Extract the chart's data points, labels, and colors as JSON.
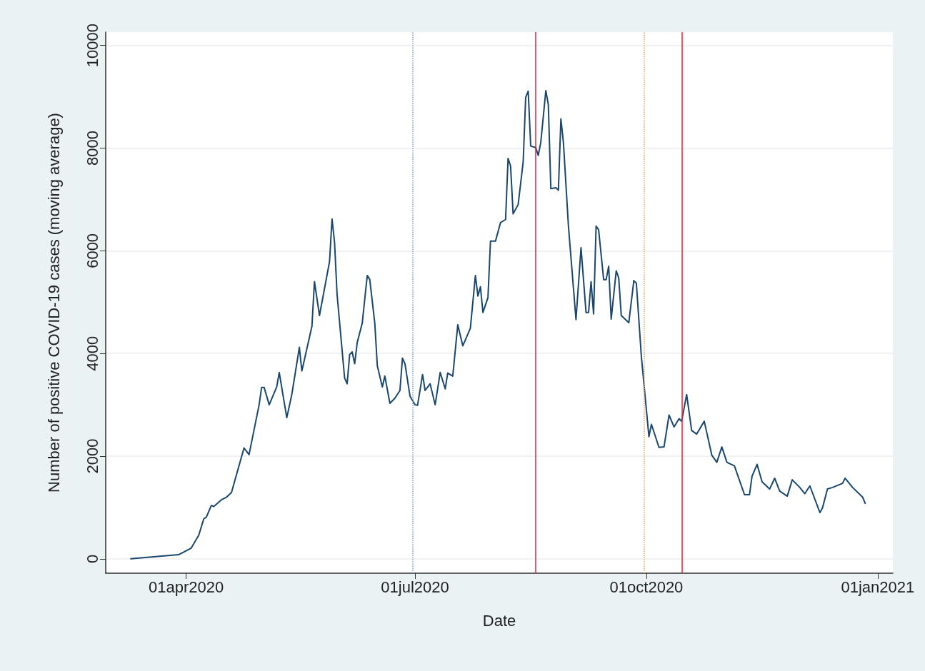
{
  "chart_data": {
    "type": "line",
    "xlabel": "Date",
    "ylabel": "Number of positive COVID-19 cases (moving average)",
    "x": [
      "2020-03-10",
      "2020-03-29",
      "2020-04-03",
      "2020-04-06",
      "2020-04-08",
      "2020-04-09",
      "2020-04-11",
      "2020-04-12",
      "2020-04-15",
      "2020-04-17",
      "2020-04-19",
      "2020-04-24",
      "2020-04-26",
      "2020-04-30",
      "2020-05-01",
      "2020-05-02",
      "2020-05-04",
      "2020-05-07",
      "2020-05-08",
      "2020-05-11",
      "2020-05-13",
      "2020-05-16",
      "2020-05-17",
      "2020-05-21",
      "2020-05-22",
      "2020-05-24",
      "2020-05-28",
      "2020-05-29",
      "2020-05-30",
      "2020-05-31",
      "2020-06-03",
      "2020-06-04",
      "2020-06-05",
      "2020-06-06",
      "2020-06-07",
      "2020-06-08",
      "2020-06-10",
      "2020-06-12",
      "2020-06-13",
      "2020-06-15",
      "2020-06-16",
      "2020-06-18",
      "2020-06-19",
      "2020-06-21",
      "2020-06-23",
      "2020-06-25",
      "2020-06-26",
      "2020-06-27",
      "2020-06-29",
      "2020-07-01",
      "2020-07-02",
      "2020-07-04",
      "2020-07-05",
      "2020-07-07",
      "2020-07-09",
      "2020-07-11",
      "2020-07-13",
      "2020-07-14",
      "2020-07-16",
      "2020-07-18",
      "2020-07-20",
      "2020-07-23",
      "2020-07-25",
      "2020-07-26",
      "2020-07-27",
      "2020-07-28",
      "2020-07-30",
      "2020-07-31",
      "2020-08-02",
      "2020-08-04",
      "2020-08-06",
      "2020-08-07",
      "2020-08-08",
      "2020-08-09",
      "2020-08-11",
      "2020-08-13",
      "2020-08-14",
      "2020-08-15",
      "2020-08-16",
      "2020-08-18",
      "2020-08-19",
      "2020-08-20",
      "2020-08-22",
      "2020-08-23",
      "2020-08-24",
      "2020-08-26",
      "2020-08-27",
      "2020-08-28",
      "2020-08-29",
      "2020-08-31",
      "2020-09-03",
      "2020-09-05",
      "2020-09-07",
      "2020-09-08",
      "2020-09-09",
      "2020-09-10",
      "2020-09-11",
      "2020-09-12",
      "2020-09-14",
      "2020-09-15",
      "2020-09-16",
      "2020-09-17",
      "2020-09-19",
      "2020-09-20",
      "2020-09-21",
      "2020-09-24",
      "2020-09-26",
      "2020-09-27",
      "2020-09-29",
      "2020-10-02",
      "2020-10-03",
      "2020-10-06",
      "2020-10-08",
      "2020-10-10",
      "2020-10-12",
      "2020-10-14",
      "2020-10-15",
      "2020-10-17",
      "2020-10-19",
      "2020-10-21",
      "2020-10-24",
      "2020-10-27",
      "2020-10-29",
      "2020-10-31",
      "2020-11-02",
      "2020-11-05",
      "2020-11-09",
      "2020-11-11",
      "2020-11-12",
      "2020-11-14",
      "2020-11-16",
      "2020-11-19",
      "2020-11-21",
      "2020-11-23",
      "2020-11-26",
      "2020-11-28",
      "2020-12-01",
      "2020-12-03",
      "2020-12-05",
      "2020-12-09",
      "2020-12-10",
      "2020-12-12",
      "2020-12-14",
      "2020-12-18",
      "2020-12-19",
      "2020-12-22",
      "2020-12-26",
      "2020-12-27"
    ],
    "series": [
      {
        "color": "#1a476f",
        "values": [
          0,
          80,
          210,
          460,
          780,
          810,
          1040,
          1020,
          1150,
          1200,
          1290,
          2160,
          2030,
          3000,
          3340,
          3340,
          3000,
          3350,
          3630,
          2750,
          3200,
          4120,
          3660,
          4530,
          5400,
          4740,
          5790,
          6620,
          6160,
          5150,
          3520,
          3410,
          3980,
          4030,
          3800,
          4210,
          4590,
          5520,
          5440,
          4590,
          3760,
          3350,
          3560,
          3030,
          3130,
          3280,
          3910,
          3800,
          3170,
          3000,
          2990,
          3590,
          3280,
          3410,
          3000,
          3630,
          3310,
          3620,
          3560,
          4560,
          4150,
          4490,
          5520,
          5120,
          5300,
          4800,
          5090,
          6190,
          6190,
          6550,
          6610,
          7800,
          7650,
          6720,
          6900,
          7730,
          8990,
          9110,
          8040,
          8010,
          7860,
          8110,
          9120,
          8850,
          7210,
          7230,
          7180,
          8570,
          8110,
          6480,
          4660,
          6060,
          4800,
          4800,
          5400,
          4770,
          6480,
          6410,
          5440,
          5440,
          5700,
          4670,
          5610,
          5470,
          4740,
          4600,
          5420,
          5370,
          3940,
          2380,
          2620,
          2170,
          2180,
          2800,
          2570,
          2730,
          2680,
          3200,
          2500,
          2430,
          2680,
          2020,
          1880,
          2180,
          1880,
          1810,
          1250,
          1250,
          1610,
          1840,
          1500,
          1360,
          1570,
          1320,
          1220,
          1540,
          1390,
          1270,
          1420,
          900,
          990,
          1360,
          1390,
          1470,
          1570,
          1390,
          1200,
          1080
        ]
      }
    ],
    "xlim": [
      "2020-02-29",
      "2021-01-07"
    ],
    "xticks": [
      {
        "value": "2020-04-01",
        "label": "01apr2020"
      },
      {
        "value": "2020-07-01",
        "label": "01jul2020"
      },
      {
        "value": "2020-10-01",
        "label": "01oct2020"
      },
      {
        "value": "2021-01-01",
        "label": "01jan2021"
      }
    ],
    "ylim": [
      -280,
      10260
    ],
    "yticks": [
      0,
      2000,
      4000,
      6000,
      8000,
      10000
    ],
    "grid": "y",
    "marker": "none",
    "line_style": "solid",
    "ref_lines": [
      {
        "axis": "x",
        "value": "2020-06-30",
        "color": "#7f9fc8",
        "line_style": "dotted"
      },
      {
        "axis": "x",
        "value": "2020-08-18",
        "color": "#d9263e",
        "line_style": "solid"
      },
      {
        "axis": "x",
        "value": "2020-09-30",
        "color": "#f2a65a",
        "line_style": "dotted"
      },
      {
        "axis": "x",
        "value": "2020-10-15",
        "color": "#d9263e",
        "line_style": "solid"
      }
    ]
  }
}
